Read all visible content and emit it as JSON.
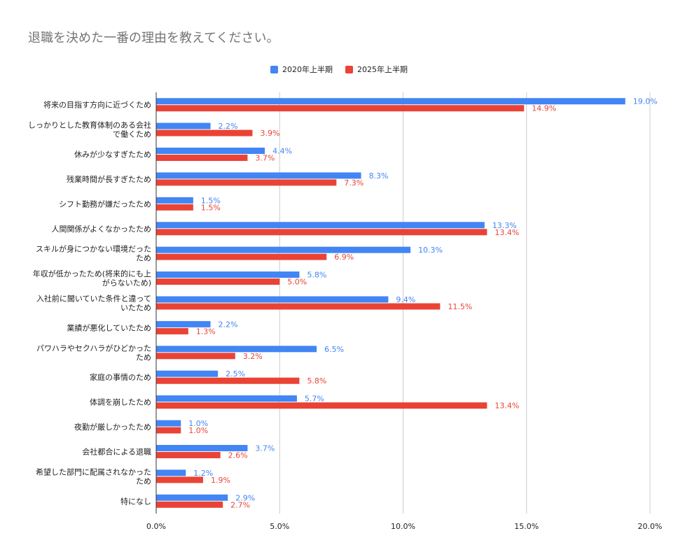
{
  "chart_data": {
    "type": "bar",
    "orientation": "horizontal",
    "title": "退職を決めた一番の理由を教えてください。",
    "legend_position": "top-center",
    "xlim": [
      0,
      20
    ],
    "x_ticks": [
      "0.0%",
      "5.0%",
      "10.0%",
      "15.0%",
      "20.0%"
    ],
    "grid": true,
    "categories": [
      [
        "将来の目指す方向に近づくため"
      ],
      [
        "しっかりとした教育体制のある会社",
        "で働くため"
      ],
      [
        "休みが少なすぎたため"
      ],
      [
        "残業時間が長すぎたため"
      ],
      [
        "シフト勤務が嫌だったため"
      ],
      [
        "人間関係がよくなかったため"
      ],
      [
        "スキルが身につかない環境だった",
        "ため"
      ],
      [
        "年収が低かったため(将来的にも上",
        "がらないため)"
      ],
      [
        "入社前に聞いていた条件と違って",
        "いたため"
      ],
      [
        "業績が悪化していたため"
      ],
      [
        "パワハラやセクハラがひどかった",
        "ため"
      ],
      [
        "家庭の事情のため"
      ],
      [
        "体調を崩したため"
      ],
      [
        "夜勤が厳しかったため"
      ],
      [
        "会社都合による退職"
      ],
      [
        "希望した部門に配属されなかった",
        "ため"
      ],
      [
        "特になし"
      ]
    ],
    "series": [
      {
        "name": "2020年上半期",
        "color": "#4285F4",
        "values": [
          19.0,
          2.2,
          4.4,
          8.3,
          1.5,
          13.3,
          10.3,
          5.8,
          9.4,
          2.2,
          6.5,
          2.5,
          5.7,
          1.0,
          3.7,
          1.2,
          2.9
        ],
        "labels": [
          "19.0%",
          "2.2%",
          "4.4%",
          "8.3%",
          "1.5%",
          "13.3%",
          "10.3%",
          "5.8%",
          "9.4%",
          "2.2%",
          "6.5%",
          "2.5%",
          "5.7%",
          "1.0%",
          "3.7%",
          "1.2%",
          "2.9%"
        ]
      },
      {
        "name": "2025年上半期",
        "color": "#EA4335",
        "values": [
          14.9,
          3.9,
          3.7,
          7.3,
          1.5,
          13.4,
          6.9,
          5.0,
          11.5,
          1.3,
          3.2,
          5.8,
          13.4,
          1.0,
          2.6,
          1.9,
          2.7
        ],
        "labels": [
          "14.9%",
          "3.9%",
          "3.7%",
          "7.3%",
          "1.5%",
          "13.4%",
          "6.9%",
          "5.0%",
          "11.5%",
          "1.3%",
          "3.2%",
          "5.8%",
          "13.4%",
          "1.0%",
          "2.6%",
          "1.9%",
          "2.7%"
        ]
      }
    ]
  }
}
